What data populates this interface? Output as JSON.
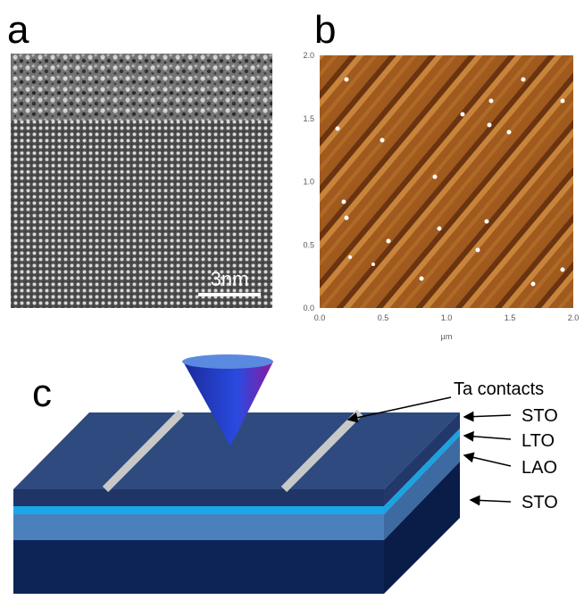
{
  "panels": [
    {
      "label": "a",
      "scale_bar": "3nm"
    },
    {
      "label": "b",
      "y_ticks": [
        "0.0",
        "0.5",
        "1.0",
        "1.5",
        "2.0"
      ],
      "x_ticks": [
        "0.0",
        "0.5",
        "1.0",
        "1.5",
        "2.0"
      ],
      "x_axis_label": "µm"
    },
    {
      "label": "c",
      "annotations": [
        "Ta contacts",
        "STO",
        "LTO",
        "LAO",
        "STO"
      ]
    }
  ]
}
